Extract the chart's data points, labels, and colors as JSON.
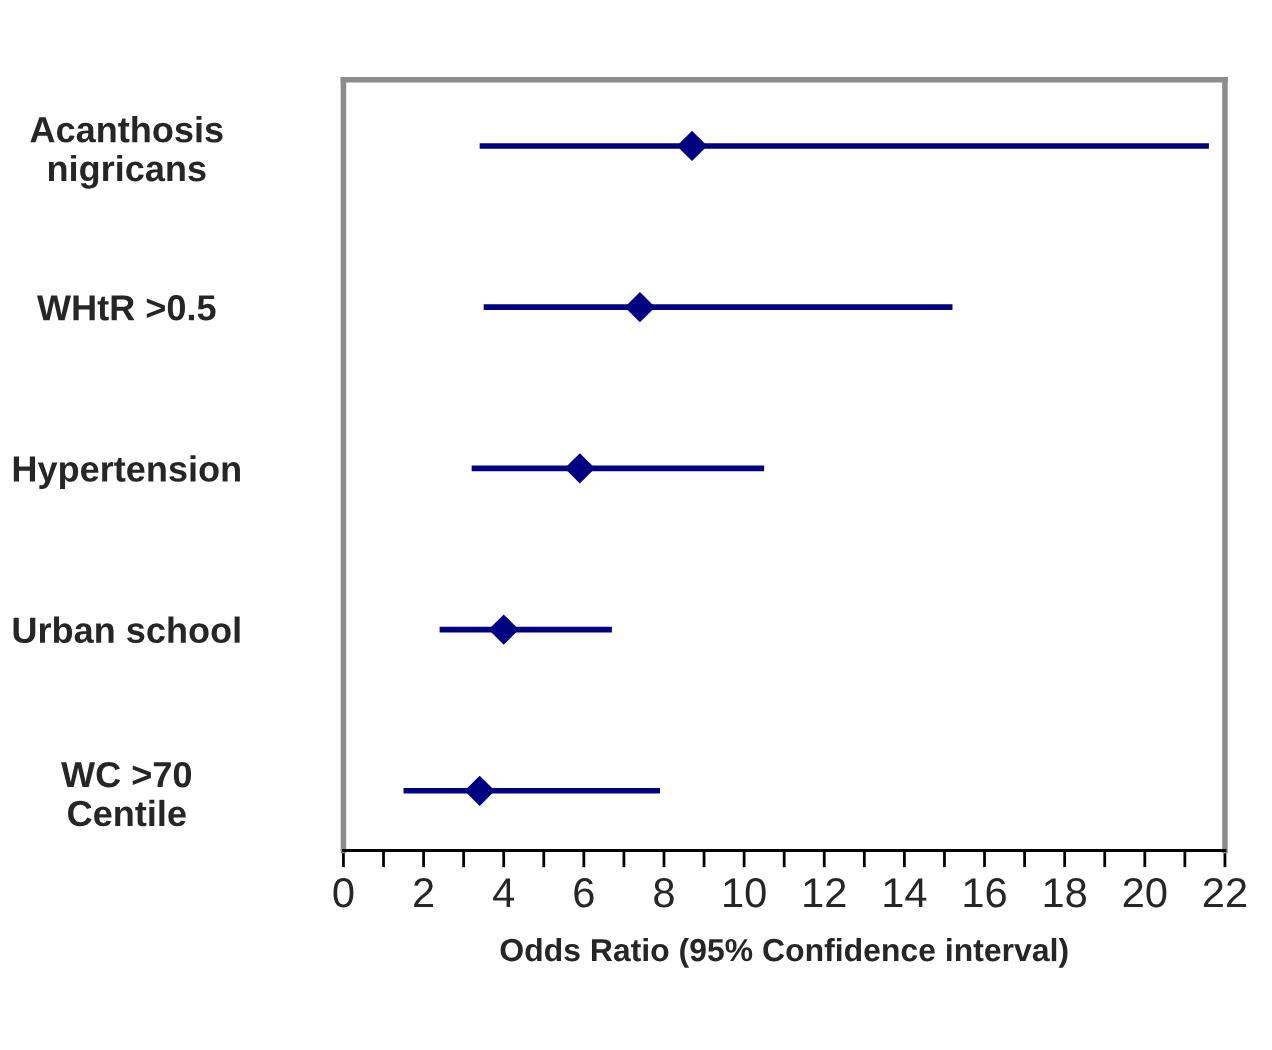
{
  "chart_data": {
    "type": "scatter",
    "orientation": "horizontal",
    "xlabel": "Odds Ratio (95% Confidence interval)",
    "categories": [
      "Acanthosis\nnigricans",
      "WHtR >0.5",
      "Hypertension",
      "Urban school",
      "WC >70\nCentile"
    ],
    "values": [
      8.7,
      7.4,
      5.9,
      4.0,
      3.4
    ],
    "errors": [
      [
        3.4,
        21.6
      ],
      [
        3.5,
        15.2
      ],
      [
        3.2,
        10.5
      ],
      [
        2.4,
        6.7
      ],
      [
        1.5,
        7.9
      ]
    ],
    "color": "#000080",
    "marker": "diamond",
    "grid": false,
    "xlim": [
      0,
      22
    ],
    "xticks": [
      0,
      {
        "value": 1,
        "label": null
      },
      2,
      {
        "value": 3,
        "label": null
      },
      4,
      {
        "value": 5,
        "label": null
      },
      6,
      {
        "value": 7,
        "label": null
      },
      8,
      {
        "value": 9,
        "label": null
      },
      10,
      {
        "value": 11,
        "label": null
      },
      12,
      {
        "value": 13,
        "label": null
      },
      14,
      {
        "value": 15,
        "label": null
      },
      16,
      {
        "value": 17,
        "label": null
      },
      18,
      {
        "value": 19,
        "label": null
      },
      20,
      {
        "value": 21,
        "label": null
      },
      22
    ]
  }
}
